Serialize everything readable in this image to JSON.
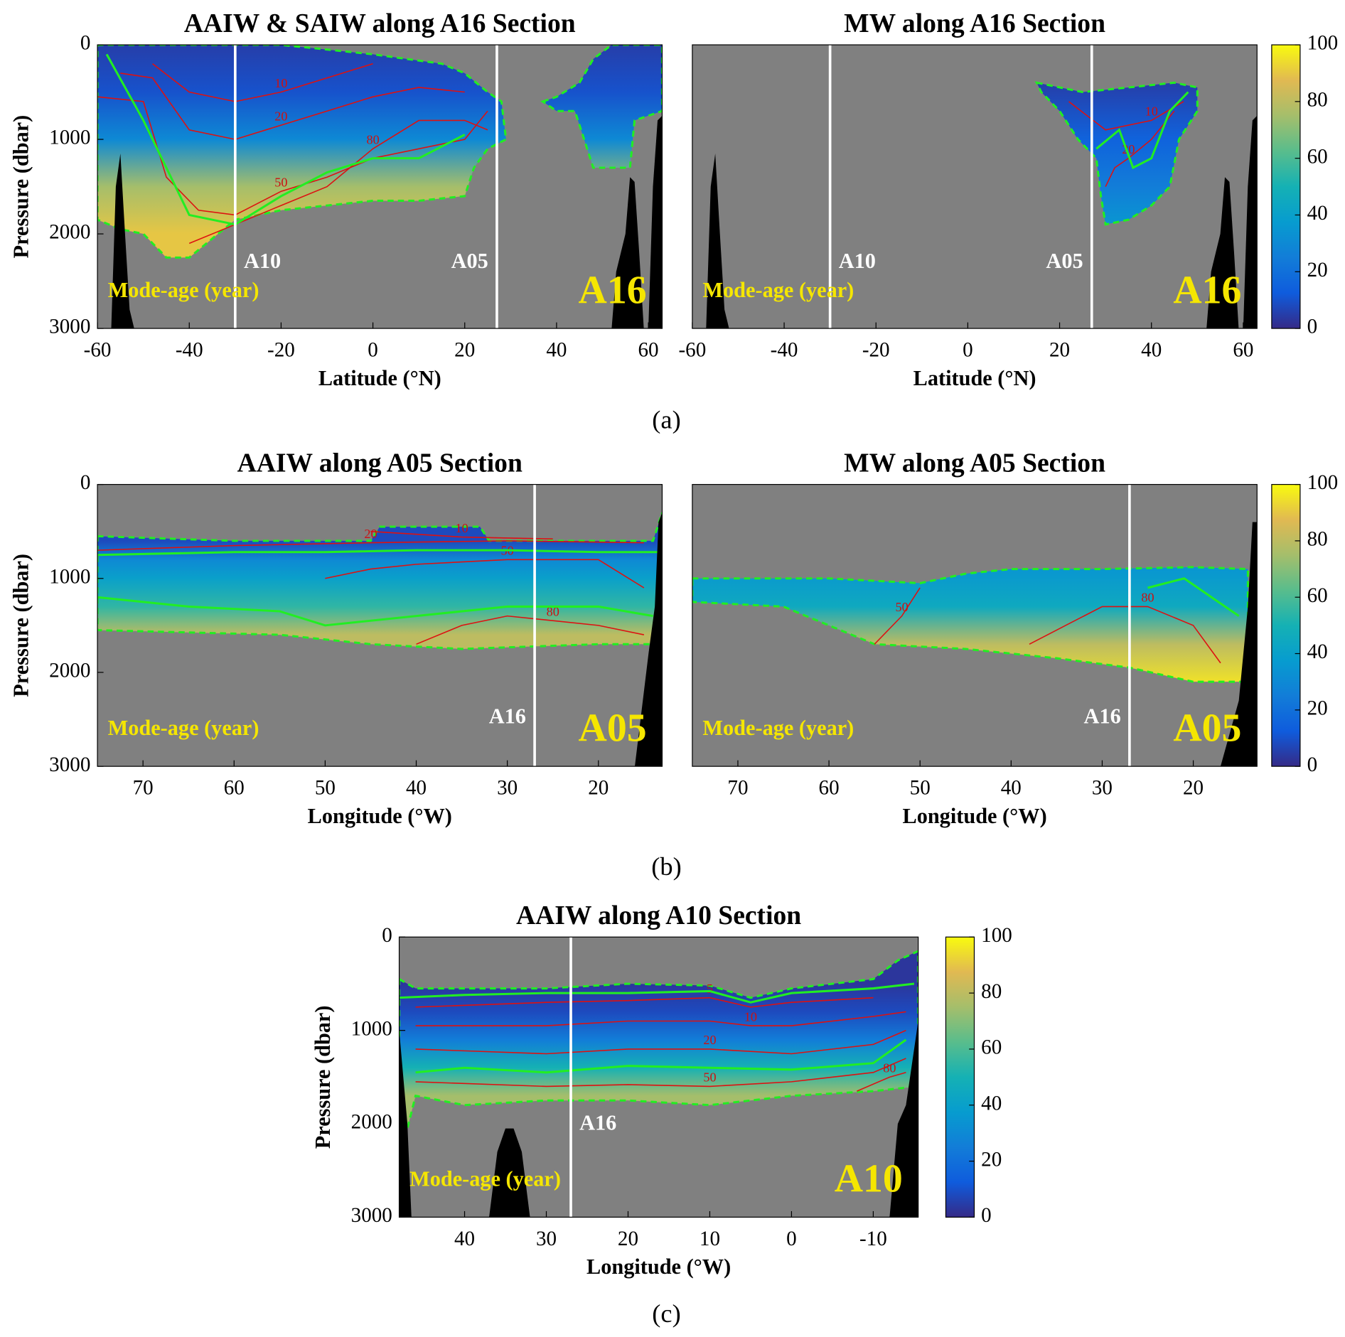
{
  "figure": {
    "captions": [
      "(a)",
      "(b)",
      "(c)"
    ]
  },
  "chart_data": [
    {
      "type": "section",
      "title": "AAIW & SAIW along A16 Section",
      "xlabel": "Latitude (°N)",
      "ylabel": "Pressure (dbar)",
      "xlim": [
        -60,
        63
      ],
      "ylim": [
        3000,
        0
      ],
      "xticks": [
        -60,
        -40,
        -20,
        0,
        20,
        40,
        60
      ],
      "yticks": [
        0,
        1000,
        2000,
        3000
      ],
      "clim": [
        0,
        100
      ],
      "field": {
        "depth": [
          0,
          500,
          1000,
          1500,
          2000
        ],
        "age": [
          5,
          10,
          30,
          75,
          90
        ]
      },
      "regions": [
        {
          "x": [
            -60,
            -40,
            -20,
            0,
            15,
            20,
            25,
            28,
            29,
            25,
            22,
            20,
            10,
            0,
            -10,
            -20,
            -30,
            -40,
            -45,
            -50,
            -55,
            -60
          ],
          "y": [
            0,
            0,
            0,
            100,
            200,
            300,
            500,
            600,
            1000,
            1100,
            1300,
            1600,
            1650,
            1650,
            1700,
            1750,
            1850,
            2250,
            2250,
            2000,
            1950,
            1850
          ]
        },
        {
          "x": [
            37,
            40,
            45,
            48,
            52,
            63,
            63,
            57,
            56,
            48,
            46,
            44,
            40
          ],
          "y": [
            600,
            550,
            400,
            150,
            0,
            0,
            700,
            800,
            1300,
            1300,
            1000,
            700,
            700
          ]
        }
      ],
      "contours": [
        {
          "level": 10,
          "x": [
            -48,
            -40,
            -30,
            -20,
            -10,
            0
          ],
          "y": [
            200,
            500,
            600,
            500,
            350,
            200
          ]
        },
        {
          "level": 20,
          "x": [
            -55,
            -48,
            -40,
            -30,
            -20,
            -10,
            0,
            10,
            20
          ],
          "y": [
            300,
            350,
            900,
            1000,
            850,
            700,
            550,
            450,
            500
          ]
        },
        {
          "level": 50,
          "x": [
            -60,
            -50,
            -45,
            -38,
            -30,
            -20,
            -10,
            0,
            10,
            20,
            25
          ],
          "y": [
            550,
            600,
            1400,
            1750,
            1800,
            1550,
            1400,
            1200,
            1100,
            1000,
            700
          ]
        },
        {
          "level": 80,
          "x": [
            -40,
            -30,
            -20,
            -10,
            0,
            10,
            20,
            25
          ],
          "y": [
            2100,
            1900,
            1700,
            1500,
            1100,
            800,
            800,
            900
          ]
        }
      ],
      "green_lines": [
        {
          "x": [
            -58,
            -50,
            -40,
            -30,
            -20,
            -10,
            0,
            10,
            20
          ],
          "y": [
            100,
            800,
            1800,
            1900,
            1600,
            1350,
            1200,
            1200,
            950
          ]
        }
      ],
      "topography": [
        {
          "x": [
            -57,
            -56,
            -55,
            -54,
            -53,
            -52
          ],
          "y": [
            3000,
            1500,
            1150,
            2000,
            2800,
            3000
          ]
        },
        {
          "x": [
            52,
            53,
            55,
            56,
            57,
            58,
            59
          ],
          "y": [
            3000,
            2400,
            2000,
            1400,
            1450,
            2200,
            3000
          ]
        },
        {
          "x": [
            60,
            61,
            62,
            63,
            63
          ],
          "y": [
            3000,
            1500,
            800,
            750,
            3000
          ]
        }
      ],
      "ref_lines": [
        {
          "x": -30,
          "label": "A10"
        },
        {
          "x": 27,
          "label": "A05"
        }
      ],
      "annotation": "Mode-age (year)",
      "section_label": "A16"
    },
    {
      "type": "section",
      "title": "MW along A16 Section",
      "xlabel": "Latitude (°N)",
      "xlim": [
        -60,
        63
      ],
      "ylim": [
        3000,
        0
      ],
      "xticks": [
        -60,
        -40,
        -20,
        0,
        20,
        40,
        60
      ],
      "clim": [
        0,
        100
      ],
      "colorbar_ticks": [
        0,
        20,
        40,
        60,
        80,
        100
      ],
      "field": {
        "depth": [
          400,
          1000,
          1500,
          1900
        ],
        "age": [
          5,
          15,
          25,
          35
        ]
      },
      "regions": [
        {
          "x": [
            15,
            25,
            35,
            45,
            50,
            50,
            46,
            44,
            40,
            35,
            30,
            29,
            28,
            24,
            20,
            16
          ],
          "y": [
            400,
            500,
            450,
            400,
            450,
            700,
            1000,
            1500,
            1700,
            1850,
            1900,
            1600,
            1200,
            1000,
            700,
            500
          ]
        }
      ],
      "contours": [
        {
          "level": 10,
          "x": [
            22,
            30,
            40,
            47
          ],
          "y": [
            600,
            900,
            800,
            600
          ]
        },
        {
          "level": 20,
          "x": [
            30,
            32,
            35,
            40,
            45
          ],
          "y": [
            1500,
            1300,
            1200,
            1000,
            700
          ]
        }
      ],
      "green_lines": [
        {
          "x": [
            28,
            33,
            36,
            40,
            44,
            48
          ],
          "y": [
            1100,
            900,
            1300,
            1200,
            700,
            500
          ]
        }
      ],
      "topography": [
        {
          "x": [
            -57,
            -56,
            -55,
            -54,
            -53,
            -52
          ],
          "y": [
            3000,
            1500,
            1150,
            2000,
            2800,
            3000
          ]
        },
        {
          "x": [
            52,
            53,
            55,
            56,
            57,
            58,
            59
          ],
          "y": [
            3000,
            2400,
            2000,
            1400,
            1450,
            2200,
            3000
          ]
        },
        {
          "x": [
            60,
            61,
            62,
            63,
            63
          ],
          "y": [
            3000,
            1500,
            800,
            750,
            3000
          ]
        }
      ],
      "ref_lines": [
        {
          "x": -30,
          "label": "A10"
        },
        {
          "x": 27,
          "label": "A05"
        }
      ],
      "annotation": "Mode-age (year)",
      "section_label": "A16"
    },
    {
      "type": "section",
      "title": "AAIW along A05 Section",
      "xlabel": "Longitude (°W)",
      "ylabel": "Pressure (dbar)",
      "xlim": [
        75,
        13
      ],
      "ylim": [
        3000,
        0
      ],
      "xticks": [
        70,
        60,
        50,
        40,
        30,
        20
      ],
      "yticks": [
        0,
        1000,
        2000,
        3000
      ],
      "clim": [
        0,
        100
      ],
      "field": {
        "depth": [
          600,
          800,
          1000,
          1300,
          1600
        ],
        "age": [
          8,
          30,
          40,
          55,
          80
        ]
      },
      "regions": [
        {
          "x": [
            75,
            60,
            45,
            44,
            33,
            32,
            20,
            14,
            13,
            13,
            14,
            20,
            35,
            45,
            55,
            75
          ],
          "y": [
            550,
            600,
            600,
            450,
            450,
            600,
            600,
            600,
            300,
            1700,
            1700,
            1700,
            1750,
            1700,
            1600,
            1550
          ]
        }
      ],
      "contours": [
        {
          "level": 10,
          "x": [
            45,
            35,
            25
          ],
          "y": [
            500,
            560,
            580
          ]
        },
        {
          "level": 20,
          "x": [
            75,
            60,
            45,
            30,
            15
          ],
          "y": [
            700,
            650,
            620,
            600,
            620
          ]
        },
        {
          "level": 50,
          "x": [
            50,
            45,
            40,
            30,
            20,
            15
          ],
          "y": [
            1000,
            900,
            850,
            800,
            800,
            1100
          ]
        },
        {
          "level": 80,
          "x": [
            40,
            35,
            30,
            25,
            20,
            15
          ],
          "y": [
            1700,
            1500,
            1400,
            1450,
            1500,
            1600
          ]
        }
      ],
      "green_lines": [
        {
          "x": [
            75,
            60,
            50,
            40,
            30,
            20,
            13
          ],
          "y": [
            750,
            720,
            720,
            700,
            700,
            720,
            720
          ]
        },
        {
          "x": [
            75,
            65,
            55,
            50,
            40,
            30,
            20,
            14
          ],
          "y": [
            1200,
            1300,
            1350,
            1500,
            1400,
            1300,
            1300,
            1400
          ]
        }
      ],
      "topography": [
        {
          "x": [
            16,
            14.5,
            13.8,
            13.4,
            13,
            13
          ],
          "y": [
            3000,
            1800,
            1300,
            400,
            300,
            3000
          ]
        }
      ],
      "ref_lines": [
        {
          "x": 27,
          "label": "A16"
        }
      ],
      "annotation": "Mode-age (year)",
      "section_label": "A05"
    },
    {
      "type": "section",
      "title": "MW along A05 Section",
      "xlabel": "Longitude (°W)",
      "xlim": [
        75,
        13
      ],
      "ylim": [
        3000,
        0
      ],
      "xticks": [
        70,
        60,
        50,
        40,
        30,
        20
      ],
      "clim": [
        0,
        100
      ],
      "colorbar_ticks": [
        0,
        20,
        40,
        60,
        80,
        100
      ],
      "field": {
        "depth": [
          900,
          1300,
          1700,
          2100
        ],
        "age": [
          35,
          45,
          80,
          95
        ]
      },
      "regions": [
        {
          "x": [
            75,
            60,
            50,
            45,
            40,
            30,
            20,
            14,
            14,
            20,
            27,
            35,
            45,
            55,
            65,
            75
          ],
          "y": [
            1000,
            1000,
            1050,
            950,
            900,
            900,
            880,
            900,
            2100,
            2100,
            1950,
            1850,
            1750,
            1700,
            1300,
            1250
          ]
        }
      ],
      "contours": [
        {
          "level": 50,
          "x": [
            55,
            52,
            50
          ],
          "y": [
            1700,
            1400,
            1100
          ]
        },
        {
          "level": 80,
          "x": [
            38,
            34,
            30,
            25,
            20,
            17
          ],
          "y": [
            1700,
            1500,
            1300,
            1300,
            1500,
            1900
          ]
        }
      ],
      "green_lines": [
        {
          "x": [
            25,
            21,
            18,
            15
          ],
          "y": [
            1100,
            1000,
            1200,
            1400
          ]
        }
      ],
      "topography": [
        {
          "x": [
            17,
            15,
            14,
            13.5,
            13,
            13
          ],
          "y": [
            3000,
            2300,
            1300,
            400,
            400,
            3000
          ]
        }
      ],
      "ref_lines": [
        {
          "x": 27,
          "label": "A16"
        }
      ],
      "annotation": "Mode-age (year)",
      "section_label": "A05"
    },
    {
      "type": "section",
      "title": "AAIW along A10 Section",
      "xlabel": "Longitude (°W)",
      "ylabel": "Pressure (dbar)",
      "xlim": [
        48,
        -15.5
      ],
      "ylim": [
        3000,
        0
      ],
      "xticks": [
        40,
        30,
        20,
        10,
        0,
        -10
      ],
      "yticks": [
        0,
        1000,
        2000,
        3000
      ],
      "clim": [
        0,
        100
      ],
      "colorbar_ticks": [
        0,
        20,
        40,
        60,
        80,
        100
      ],
      "field": {
        "depth": [
          500,
          800,
          1100,
          1400,
          1700
        ],
        "age": [
          3,
          8,
          25,
          50,
          75
        ]
      },
      "regions": [
        {
          "x": [
            48,
            46,
            40,
            30,
            20,
            10,
            5,
            0,
            -10,
            -13,
            -15.5,
            -15.5,
            -10,
            0,
            10,
            20,
            30,
            40,
            46,
            47,
            48
          ],
          "y": [
            450,
            550,
            550,
            550,
            500,
            520,
            650,
            550,
            450,
            250,
            150,
            1600,
            1650,
            1700,
            1800,
            1750,
            1750,
            1800,
            1700,
            2050,
            2000
          ]
        }
      ],
      "contours": [
        {
          "level": 5,
          "x": [
            46,
            30,
            20,
            10,
            5,
            0,
            -10
          ],
          "y": [
            750,
            700,
            680,
            650,
            750,
            700,
            650
          ]
        },
        {
          "level": 10,
          "x": [
            46,
            30,
            20,
            10,
            5,
            0,
            -10,
            -14
          ],
          "y": [
            950,
            950,
            900,
            900,
            950,
            950,
            850,
            800
          ]
        },
        {
          "level": 20,
          "x": [
            46,
            30,
            20,
            10,
            0,
            -10,
            -14
          ],
          "y": [
            1200,
            1250,
            1200,
            1200,
            1250,
            1150,
            1000
          ]
        },
        {
          "level": 50,
          "x": [
            46,
            30,
            20,
            10,
            0,
            -10,
            -14
          ],
          "y": [
            1550,
            1600,
            1580,
            1600,
            1550,
            1450,
            1300
          ]
        },
        {
          "level": 80,
          "x": [
            -8,
            -12,
            -14
          ],
          "y": [
            1650,
            1500,
            1450
          ]
        }
      ],
      "green_lines": [
        {
          "x": [
            48,
            40,
            30,
            20,
            10,
            5,
            0,
            -10,
            -15
          ],
          "y": [
            650,
            620,
            600,
            600,
            580,
            700,
            600,
            550,
            500
          ]
        },
        {
          "x": [
            46,
            40,
            30,
            20,
            10,
            0,
            -10,
            -14
          ],
          "y": [
            1450,
            1400,
            1450,
            1380,
            1400,
            1420,
            1350,
            1100
          ]
        }
      ],
      "topography": [
        {
          "x": [
            48,
            48,
            47,
            46.5
          ],
          "y": [
            3000,
            1000,
            2000,
            3000
          ]
        },
        {
          "x": [
            37,
            36,
            35,
            34,
            33,
            32
          ],
          "y": [
            3000,
            2300,
            2050,
            2050,
            2300,
            3000
          ]
        },
        {
          "x": [
            -12,
            -13,
            -14,
            -15.5,
            -15.5
          ],
          "y": [
            3000,
            2000,
            1800,
            900,
            3000
          ]
        }
      ],
      "ref_lines": [
        {
          "x": 27,
          "label": "A16"
        }
      ],
      "annotation": "Mode-age (year)",
      "section_label": "A10"
    }
  ]
}
